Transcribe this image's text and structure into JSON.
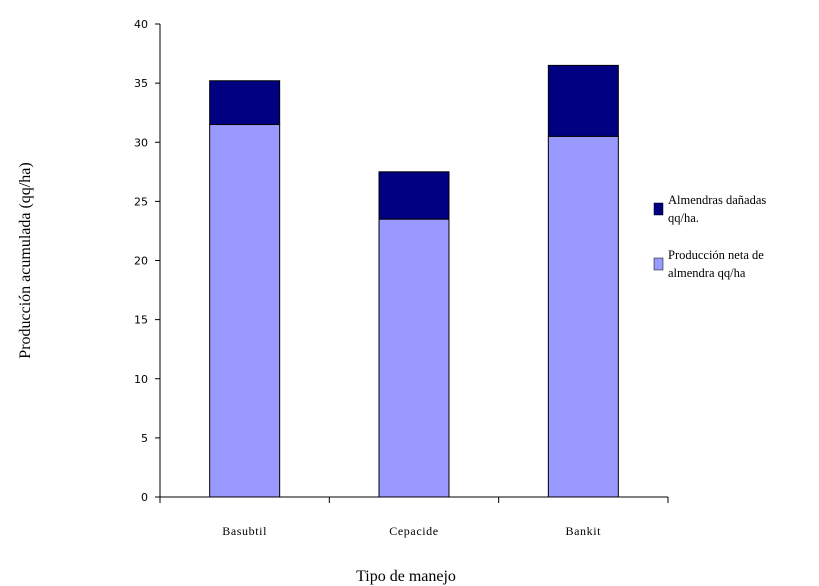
{
  "chart_data": {
    "type": "bar",
    "stacked": true,
    "categories": [
      "Basubtil",
      "Cepacide",
      "Bankit"
    ],
    "series": [
      {
        "name": "Producción neta de almendra qq/ha",
        "color": "#9999ff",
        "values": [
          31.5,
          23.5,
          30.5
        ]
      },
      {
        "name": "Almendras dañadas qq/ha.",
        "color": "#000080",
        "values": [
          3.7,
          4.0,
          6.0
        ]
      }
    ],
    "ylim": [
      0,
      40
    ],
    "yticks": [
      "0",
      "5",
      "10",
      "15",
      "20",
      "25",
      "30",
      "35",
      "40"
    ],
    "xlabel": "Tipo de manejo",
    "ylabel": "Producción acumulada (qq/ha)",
    "legend": {
      "position": "right",
      "entries": [
        {
          "lines": [
            "Almendras dañadas",
            "qq/ha."
          ],
          "color": "#000080"
        },
        {
          "lines": [
            "Producción neta de",
            "almendra qq/ha"
          ],
          "color": "#9999ff"
        }
      ]
    },
    "grid": false
  }
}
